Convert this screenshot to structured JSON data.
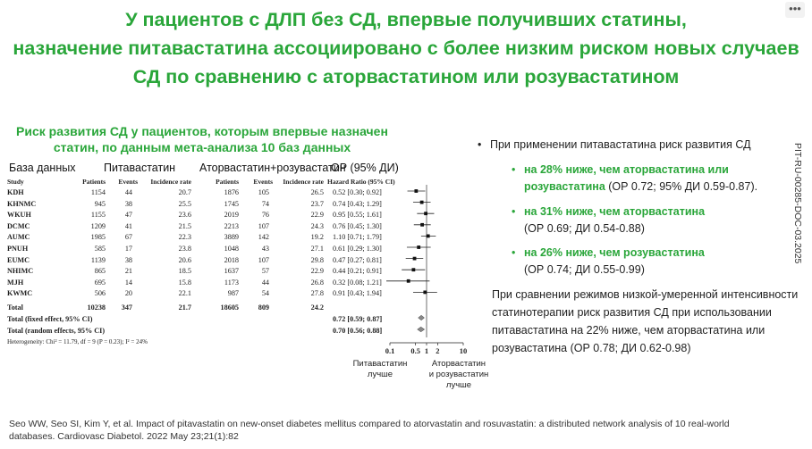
{
  "title_lines": [
    "У пациентов с ДЛП без СД, впервые получивших статины,",
    "назначение питавастатина ассоциировано с более низким риском новых случаев",
    "СД по сравнению с аторвастатином или розувастатином"
  ],
  "menu_label": "•••",
  "left_title": [
    "Риск развития СД у пациентов, которым впервые назначен",
    "статин, по данным мета-анализа 10 баз данных"
  ],
  "headers": {
    "db": "База данных",
    "pita": "Питавастатин",
    "comp": "Аторвастатин+розувастатин",
    "or": "ОР (95% ДИ)"
  },
  "sub_headers": {
    "study": "Study",
    "patients": "Patients",
    "events": "Events",
    "rate": "Incidence rate",
    "patients2": "Patients",
    "events2": "Events",
    "rate2": "Incidence rate",
    "hr": "Hazard Ratio (95% CI)"
  },
  "rows": [
    {
      "study": "KDH",
      "p1": "1154",
      "e1": "44",
      "r1": "20.7",
      "p2": "1876",
      "e2": "105",
      "r2": "26.5",
      "hr": "0.52 [0.30; 0.92]"
    },
    {
      "study": "KHNMC",
      "p1": "945",
      "e1": "38",
      "r1": "25.5",
      "p2": "1745",
      "e2": "74",
      "r2": "23.7",
      "hr": "0.74 [0.43; 1.29]"
    },
    {
      "study": "WKUH",
      "p1": "1155",
      "e1": "47",
      "r1": "23.6",
      "p2": "2019",
      "e2": "76",
      "r2": "22.9",
      "hr": "0.95 [0.55; 1.61]"
    },
    {
      "study": "DCMC",
      "p1": "1209",
      "e1": "41",
      "r1": "21.5",
      "p2": "2213",
      "e2": "107",
      "r2": "24.3",
      "hr": "0.76 [0.45; 1.30]"
    },
    {
      "study": "AUMC",
      "p1": "1985",
      "e1": "67",
      "r1": "22.3",
      "p2": "3889",
      "e2": "142",
      "r2": "19.2",
      "hr": "1.10 [0.71; 1.79]"
    },
    {
      "study": "PNUH",
      "p1": "585",
      "e1": "17",
      "r1": "23.8",
      "p2": "1048",
      "e2": "43",
      "r2": "27.1",
      "hr": "0.61 [0.29; 1.30]"
    },
    {
      "study": "EUMC",
      "p1": "1139",
      "e1": "38",
      "r1": "20.6",
      "p2": "2018",
      "e2": "107",
      "r2": "29.8",
      "hr": "0.47 [0.27; 0.81]"
    },
    {
      "study": "NHIMC",
      "p1": "865",
      "e1": "21",
      "r1": "18.5",
      "p2": "1637",
      "e2": "57",
      "r2": "22.9",
      "hr": "0.44 [0.21; 0.91]"
    },
    {
      "study": "MJH",
      "p1": "695",
      "e1": "14",
      "r1": "15.8",
      "p2": "1173",
      "e2": "44",
      "r2": "26.8",
      "hr": "0.32 [0.08; 1.21]"
    },
    {
      "study": "KWMC",
      "p1": "506",
      "e1": "20",
      "r1": "22.1",
      "p2": "987",
      "e2": "54",
      "r2": "27.8",
      "hr": "0.91 [0.43; 1.94]"
    }
  ],
  "total": {
    "label": "Total",
    "p1": "10238",
    "e1": "347",
    "r1": "21.7",
    "p2": "18605",
    "e2": "809",
    "r2": "24.2"
  },
  "fixed": {
    "label": "Total (fixed effect, 95% CI)",
    "hr": "0.72 [0.59; 0.87]"
  },
  "random": {
    "label": "Total (random effects, 95% CI)",
    "hr": "0.70 [0.56; 0.88]"
  },
  "heterogeneity": "Heterogeneity: Chi² = 11.79, df = 9 (P = 0.23); I² = 24%",
  "chart_data": {
    "type": "forest",
    "scale": "log",
    "xlim": [
      0.1,
      10
    ],
    "ticks": [
      "0.1",
      "0.5",
      "1",
      "2",
      "10"
    ],
    "tick_values": [
      0.1,
      0.5,
      1,
      2,
      10
    ],
    "studies": [
      {
        "name": "KDH",
        "hr": 0.52,
        "lo": 0.3,
        "hi": 0.92
      },
      {
        "name": "KHNMC",
        "hr": 0.74,
        "lo": 0.43,
        "hi": 1.29
      },
      {
        "name": "WKUH",
        "hr": 0.95,
        "lo": 0.55,
        "hi": 1.61
      },
      {
        "name": "DCMC",
        "hr": 0.76,
        "lo": 0.45,
        "hi": 1.3
      },
      {
        "name": "AUMC",
        "hr": 1.1,
        "lo": 0.71,
        "hi": 1.79
      },
      {
        "name": "PNUH",
        "hr": 0.61,
        "lo": 0.29,
        "hi": 1.3
      },
      {
        "name": "EUMC",
        "hr": 0.47,
        "lo": 0.27,
        "hi": 0.81
      },
      {
        "name": "NHIMC",
        "hr": 0.44,
        "lo": 0.21,
        "hi": 0.91
      },
      {
        "name": "MJH",
        "hr": 0.32,
        "lo": 0.08,
        "hi": 1.21
      },
      {
        "name": "KWMC",
        "hr": 0.91,
        "lo": 0.43,
        "hi": 1.94
      }
    ],
    "pooled": [
      {
        "name": "fixed",
        "hr": 0.72,
        "lo": 0.59,
        "hi": 0.87
      },
      {
        "name": "random",
        "hr": 0.7,
        "lo": 0.56,
        "hi": 0.88
      }
    ],
    "left_label": [
      "Питавастатин",
      "лучше"
    ],
    "right_label": [
      "Аторвастатин",
      "и розувастатин",
      "лучше"
    ]
  },
  "right": {
    "intro": "При применении питавастатина риск развития СД",
    "b1_green": "на 28% ниже, чем аторвастатина или",
    "b1_green2": "розувастатина",
    "b1_rest": " (ОР  0.72; 95% ДИ 0.59-0.87).",
    "b2_green": "на 31% ниже, чем аторвастатина",
    "b2_rest": "(ОР 0.69; ДИ 0.54-0.88)",
    "b3_green": "на 26% ниже, чем розувастатина",
    "b3_rest": "(ОР 0.74; ДИ 0.55-0.99)",
    "para": [
      "При сравнении режимов низкой-умеренной интенсивности",
      "статинотерапии риск развития СД при использовании",
      "питавастатина на 22% ниже, чем аторвастатина или",
      "розувастатина (ОР 0.78; ДИ 0.62-0.98)"
    ]
  },
  "side_code": "PIT-RU-00285-DOC-03.2025",
  "reference": [
    "Seo WW, Seo SI, Kim Y, et al. Impact of pitavastatin on new-onset diabetes mellitus compared to atorvastatin and rosuvastatin: a distributed network analysis of 10 real-world",
    "databases. Cardiovasc Diabetol. 2022 May 23;21(1):82"
  ]
}
